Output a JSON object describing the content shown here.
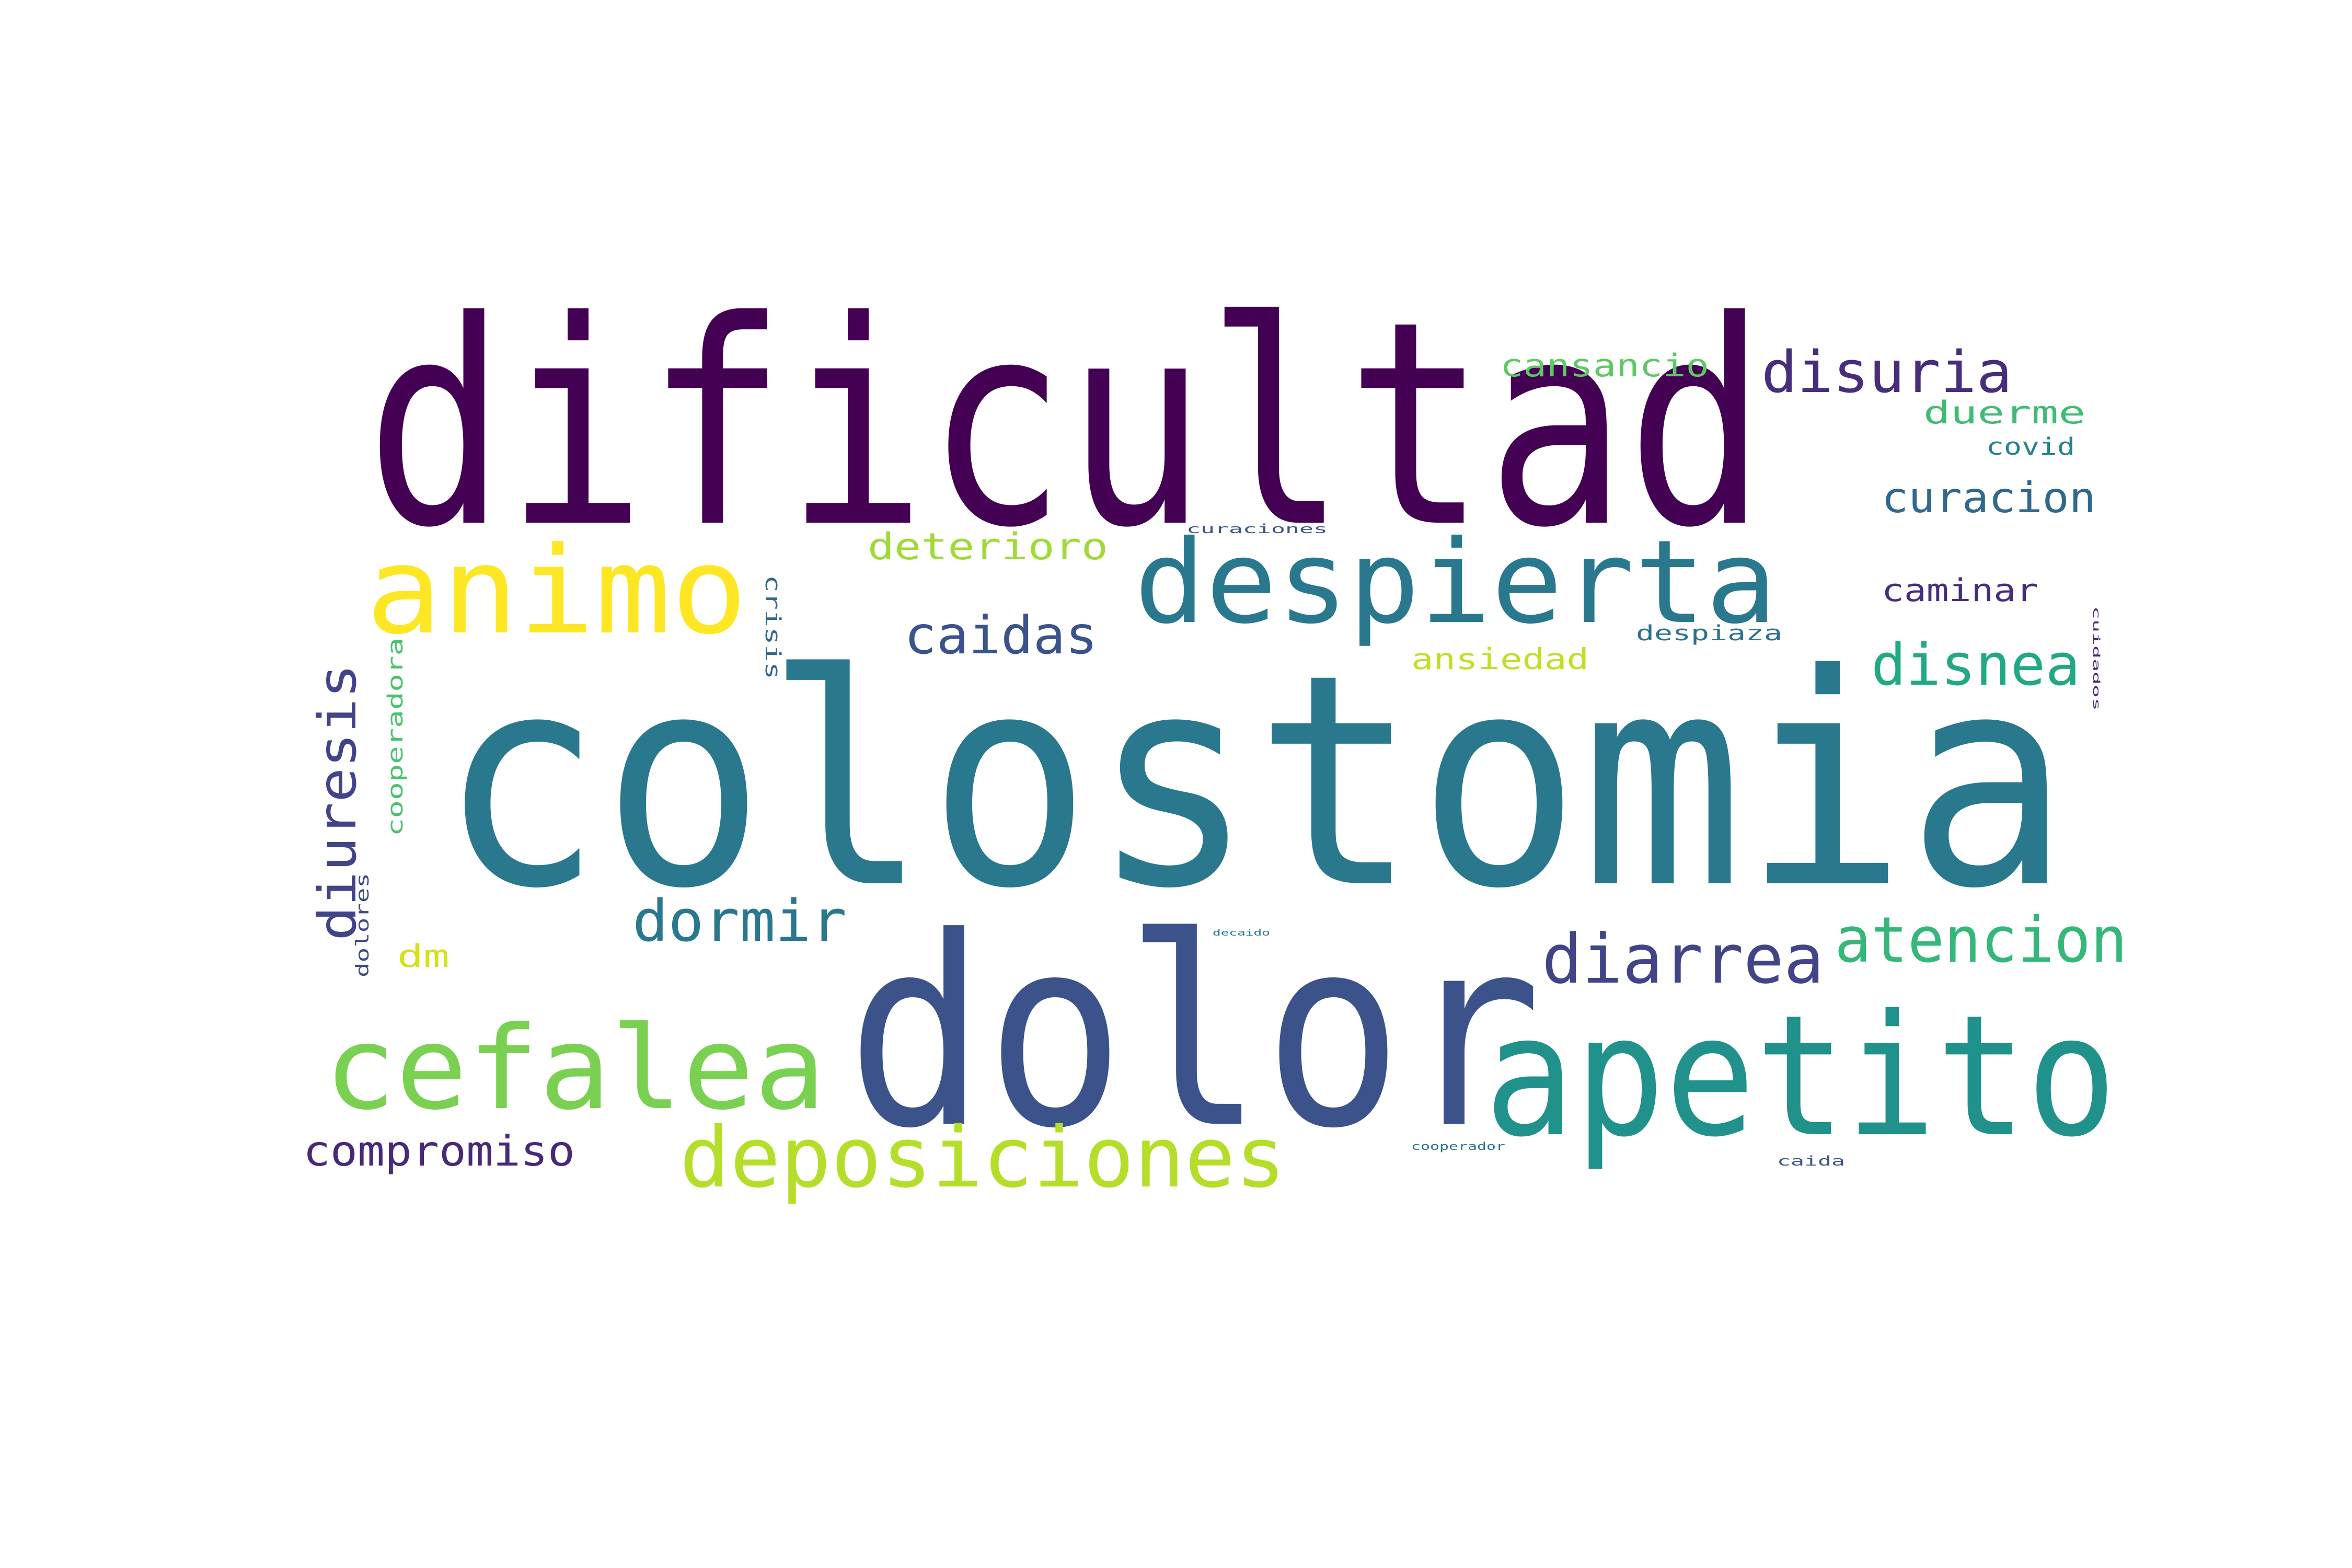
{
  "words": [
    {
      "text": "dificultad",
      "color": "#440154"
    },
    {
      "text": "colostomia",
      "color": "#2a788e"
    },
    {
      "text": "dolor",
      "color": "#3b528b"
    },
    {
      "text": "apetito",
      "color": "#21918c"
    },
    {
      "text": "animo",
      "color": "#fde725"
    },
    {
      "text": "despierta",
      "color": "#2a788e"
    },
    {
      "text": "cefalea",
      "color": "#7ad151"
    },
    {
      "text": "deposiciones",
      "color": "#b5de2b"
    },
    {
      "text": "diarrea",
      "color": "#414487"
    },
    {
      "text": "atencion",
      "color": "#35b779"
    },
    {
      "text": "dormir",
      "color": "#2a788e"
    },
    {
      "text": "disuria",
      "color": "#472d7b"
    },
    {
      "text": "disnea",
      "color": "#22a884"
    },
    {
      "text": "caidas",
      "color": "#3b528b"
    },
    {
      "text": "curacion",
      "color": "#31688e"
    },
    {
      "text": "diuresis",
      "color": "#414487"
    },
    {
      "text": "compromiso",
      "color": "#482878"
    },
    {
      "text": "deterioro",
      "color": "#a0da39"
    },
    {
      "text": "cansancio",
      "color": "#5ec962"
    },
    {
      "text": "duerme",
      "color": "#3fbc73"
    },
    {
      "text": "caminar",
      "color": "#472d7b"
    },
    {
      "text": "ansiedad",
      "color": "#c2df23"
    },
    {
      "text": "covid",
      "color": "#26828e"
    },
    {
      "text": "crisis",
      "color": "#31688e"
    },
    {
      "text": "cooperadora",
      "color": "#4ac16d"
    },
    {
      "text": "despiaza",
      "color": "#2c728e"
    },
    {
      "text": "dm",
      "color": "#d2e21b"
    },
    {
      "text": "dolores",
      "color": "#3e4a89"
    },
    {
      "text": "curaciones",
      "color": "#3b528b"
    },
    {
      "text": "caida",
      "color": "#3b528b"
    },
    {
      "text": "cooperador",
      "color": "#2c728e"
    },
    {
      "text": "decaido",
      "color": "#2a788e"
    },
    {
      "text": "cuidados",
      "color": "#482475"
    }
  ]
}
